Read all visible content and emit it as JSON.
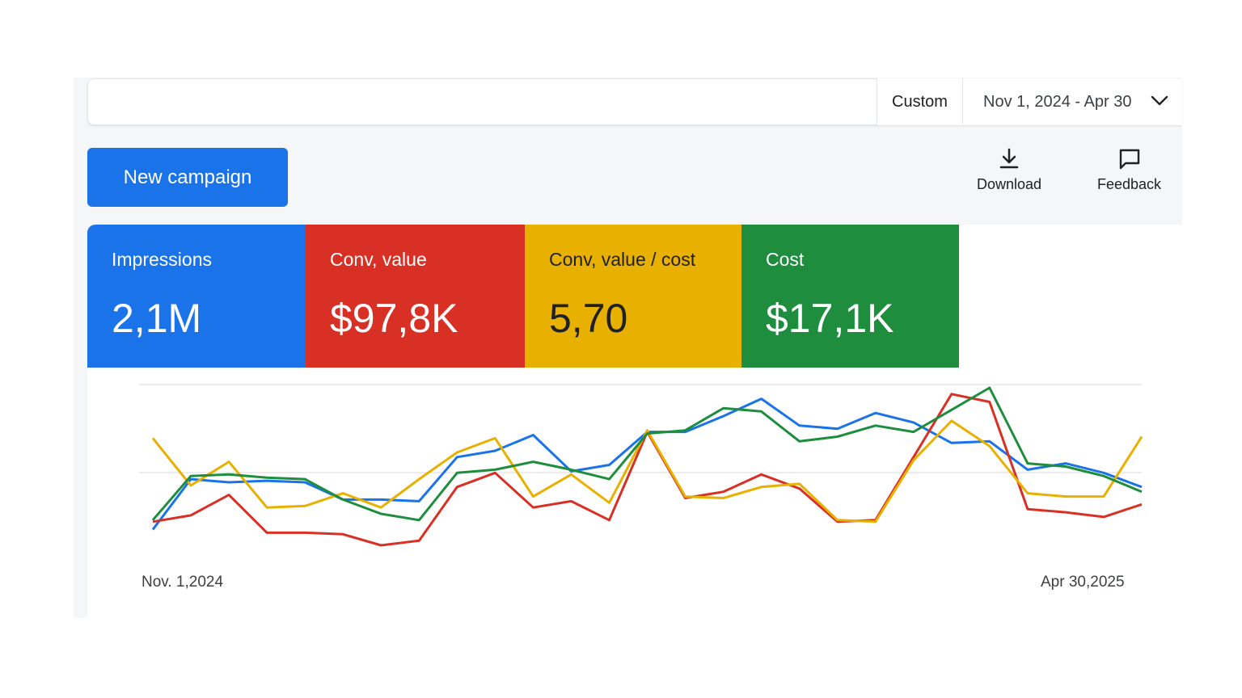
{
  "date_range": {
    "preset_label": "Custom",
    "range_label": "Nov 1, 2024 - Apr 30"
  },
  "toolbar": {
    "new_campaign_label": "New campaign",
    "download_label": "Download",
    "feedback_label": "Feedback"
  },
  "metrics": [
    {
      "label": "Impressions",
      "value": "2,1M",
      "color": "#1a73e8"
    },
    {
      "label": "Conv, value",
      "value": "$97,8K",
      "color": "#d93025"
    },
    {
      "label": "Conv, value / cost",
      "value": "5,70",
      "color": "#e8b100"
    },
    {
      "label": "Cost",
      "value": "$17,1K",
      "color": "#1e8e3e"
    }
  ],
  "chart_data": {
    "type": "line",
    "x_start_label": "Nov. 1,2024",
    "x_end_label": "Apr  30,2025",
    "grid": true,
    "y_range": [
      0,
      100
    ],
    "series": [
      {
        "color": "#1a73e8",
        "values": [
          10,
          42,
          40,
          41,
          40,
          29,
          29,
          28,
          56,
          60,
          70,
          47,
          51,
          72,
          72,
          82,
          93,
          76,
          74,
          84,
          78,
          65,
          66,
          48,
          52,
          46,
          37
        ]
      },
      {
        "color": "#d93025",
        "values": [
          15,
          19,
          32,
          8,
          8,
          7,
          0,
          3,
          37,
          46,
          24,
          28,
          16,
          72,
          30,
          34,
          45,
          36,
          15,
          16,
          56,
          96,
          91,
          23,
          21,
          18,
          26
        ]
      },
      {
        "color": "#e8b100",
        "values": [
          68,
          38,
          53,
          24,
          25,
          33,
          24,
          42,
          59,
          68,
          31,
          45,
          27,
          73,
          31,
          30,
          37,
          39,
          16,
          15,
          54,
          79,
          63,
          33,
          31,
          31,
          69
        ]
      },
      {
        "color": "#1e8e3e",
        "values": [
          16,
          44,
          45,
          43,
          42,
          29,
          20,
          16,
          46,
          48,
          53,
          48,
          42,
          71,
          73,
          87,
          85,
          66,
          69,
          76,
          72,
          86,
          100,
          52,
          50,
          44,
          34
        ]
      }
    ]
  }
}
